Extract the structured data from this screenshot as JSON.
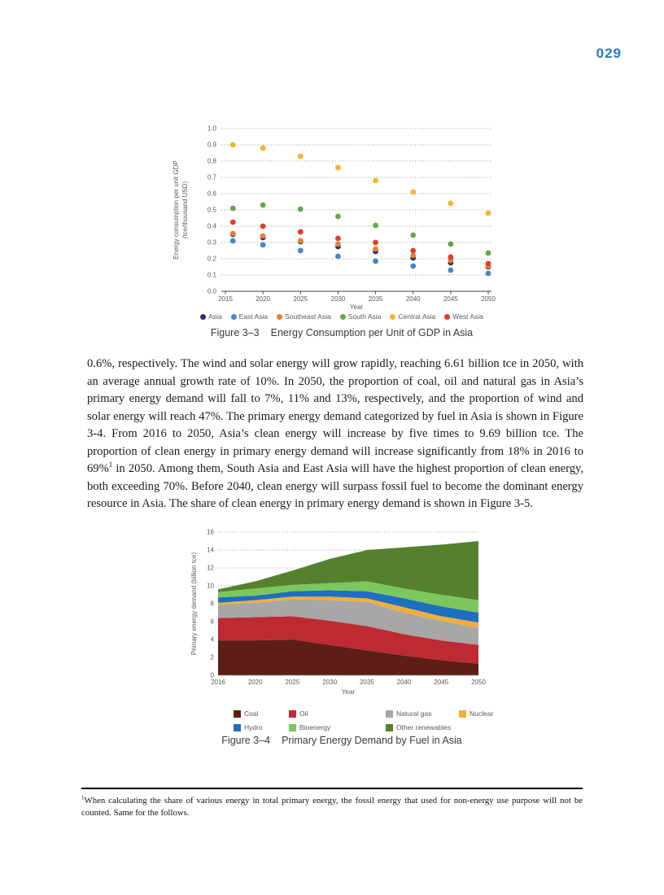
{
  "page": {
    "number": "029",
    "number_color": "#2879be"
  },
  "paragraph": {
    "part1": "0.6%, respectively. The wind and solar energy will grow rapidly, reaching 6.61 billion tce in 2050, with an average annual growth rate of 10%. In 2050, the proportion of coal, oil and natural gas in Asia’s primary energy demand will fall to 7%, 11% and 13%, respectively, and the proportion of wind and solar energy will reach 47%. The primary energy demand categorized by fuel in Asia is shown in Figure 3-4. From 2016 to 2050, Asia’s clean energy will increase by five times to 9.69 billion tce. The proportion of clean energy in primary energy demand will increase significantly from 18% in 2016 to 69%",
    "sup": "1",
    "part2": " in 2050. Among them, South Asia and East Asia will have the highest proportion of clean energy, both exceeding 70%. Before 2040, clean energy will surpass fossil fuel to become the dominant energy resource in Asia. The share of clean energy in primary energy demand is shown in Figure 3-5."
  },
  "footnote": {
    "sup": "1",
    "text": "When calculating the share of various energy in total primary energy, the fossil energy that used for non-energy use purpose will not be counted. Same for the follows."
  },
  "chart_data": [
    {
      "type": "scatter",
      "figure_label": "Figure 3–3",
      "title": "Energy Consumption per Unit of GDP in Asia",
      "xlabel": "Year",
      "ylabel_lines": [
        "Energy consumption per unit GDP",
        "(tce/thousand USD)"
      ],
      "x": [
        2016,
        2020,
        2025,
        2030,
        2035,
        2040,
        2045,
        2050
      ],
      "xlim": [
        2015,
        2050
      ],
      "xticks": [
        2015,
        2020,
        2025,
        2030,
        2035,
        2040,
        2045,
        2050
      ],
      "ylim": [
        0.0,
        1.0
      ],
      "ytick_step": 0.1,
      "grid": "dotted-horizontal",
      "legend_position": "bottom",
      "series": [
        {
          "name": "Asia",
          "color": "#263069",
          "values": [
            0.35,
            0.33,
            0.305,
            0.275,
            0.245,
            0.205,
            0.175,
            0.15
          ]
        },
        {
          "name": "East Asia",
          "color": "#4a86c6",
          "values": [
            0.31,
            0.285,
            0.25,
            0.215,
            0.185,
            0.155,
            0.13,
            0.11
          ]
        },
        {
          "name": "Southeast Asia",
          "color": "#ed7d31",
          "values": [
            0.355,
            0.34,
            0.31,
            0.29,
            0.26,
            0.22,
            0.19,
            0.155
          ]
        },
        {
          "name": "South Asia",
          "color": "#61a74c",
          "values": [
            0.51,
            0.53,
            0.505,
            0.46,
            0.405,
            0.345,
            0.29,
            0.235
          ]
        },
        {
          "name": "Central Asia",
          "color": "#f5b32f",
          "values": [
            0.9,
            0.88,
            0.83,
            0.76,
            0.68,
            0.61,
            0.54,
            0.48
          ]
        },
        {
          "name": "West Asia",
          "color": "#e23a2c",
          "values": [
            0.425,
            0.4,
            0.365,
            0.325,
            0.3,
            0.25,
            0.21,
            0.17
          ]
        }
      ]
    },
    {
      "type": "area",
      "figure_label": "Figure 3–4",
      "title": "Primary Energy Demand by Fuel in Asia",
      "xlabel": "Year",
      "ylabel": "Primary energy demand (billion tce)",
      "categories": [
        2016,
        2020,
        2025,
        2030,
        2035,
        2040,
        2045,
        2050
      ],
      "ylim": [
        0,
        16
      ],
      "ytick_step": 2,
      "grid": "dotted-horizontal",
      "legend_position": "bottom",
      "series": [
        {
          "name": "Coal",
          "color": "#5e1e15",
          "values": [
            3.9,
            3.9,
            4.0,
            3.4,
            2.8,
            2.2,
            1.7,
            1.3
          ]
        },
        {
          "name": "Oil",
          "color": "#be2a32",
          "values": [
            2.5,
            2.6,
            2.6,
            2.7,
            2.7,
            2.4,
            2.2,
            2.1
          ]
        },
        {
          "name": "Natural gas",
          "color": "#a7a7a7",
          "values": [
            1.5,
            1.6,
            1.9,
            2.3,
            2.7,
            2.4,
            2.2,
            1.9
          ]
        },
        {
          "name": "Nuclear",
          "color": "#f2ae3a",
          "values": [
            0.2,
            0.3,
            0.3,
            0.4,
            0.4,
            0.6,
            0.5,
            0.6
          ]
        },
        {
          "name": "Hydro",
          "color": "#1f6fbe",
          "values": [
            0.6,
            0.5,
            0.6,
            0.7,
            0.8,
            1.0,
            1.1,
            1.1
          ]
        },
        {
          "name": "Bioenergy",
          "color": "#7cc75e",
          "values": [
            0.6,
            0.8,
            0.7,
            0.8,
            1.1,
            1.1,
            1.3,
            1.4
          ]
        },
        {
          "name": "Other renewables",
          "color": "#55812e",
          "values": [
            0.3,
            0.8,
            1.6,
            2.7,
            3.5,
            4.6,
            5.6,
            6.6
          ]
        }
      ]
    }
  ]
}
